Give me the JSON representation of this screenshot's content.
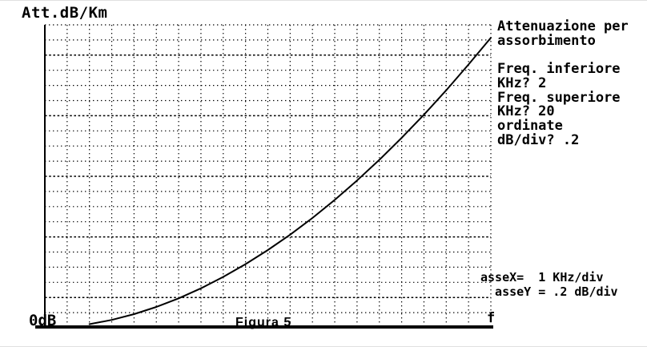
{
  "figure": {
    "y_axis_label": "Att.dB/Km",
    "origin_label": "0dB",
    "x_axis_label": "f",
    "caption": "Figura 5"
  },
  "info_panel": {
    "text": "Attenuazione per\nassorbimento\n\nFreq. inferiore\nKHz? 2\nFreq. superiore\nKHz? 20\nordinate\ndB/div? .2"
  },
  "axes_info": {
    "text": "asseX=  1 KHz/div\n  asseY = .2 dB/div"
  },
  "colors": {
    "ink": "#000000",
    "background": "#ffffff"
  },
  "chart_data": {
    "type": "line",
    "title": "Attenuazione per assorbimento",
    "xlabel": "f",
    "ylabel": "Att.dB/Km",
    "x_scale_label": "asseX= 1 KHz/div",
    "y_scale_label": "asseY = .2 dB/div",
    "x_div_value_khz": 1,
    "y_div_value_db": 0.2,
    "freq_inferiore_khz": 2,
    "freq_superiore_khz": 20,
    "xlim": [
      0,
      20
    ],
    "ylim": [
      0,
      4
    ],
    "x_divisions": 20,
    "y_divisions": 20,
    "grid": "dotted",
    "legend": "none",
    "series": [
      {
        "name": "Attenuazione per assorbimento",
        "x": [
          2,
          3,
          4,
          5,
          6,
          7,
          8,
          9,
          10,
          11,
          12,
          13,
          14,
          15,
          16,
          17,
          18,
          19,
          20
        ],
        "y": [
          0.048,
          0.104,
          0.18,
          0.275,
          0.388,
          0.521,
          0.672,
          0.84,
          1.026,
          1.23,
          1.45,
          1.689,
          1.945,
          2.218,
          2.508,
          2.814,
          3.137,
          3.476,
          3.83
        ]
      }
    ]
  }
}
